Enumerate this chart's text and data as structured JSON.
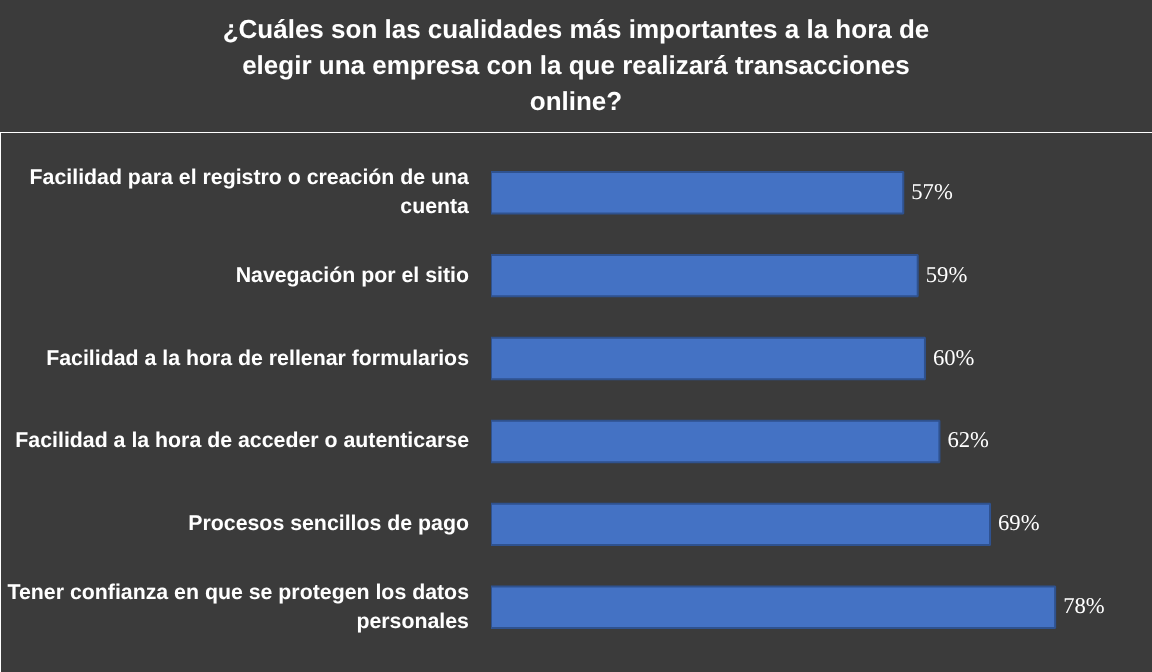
{
  "chart_data": {
    "type": "bar",
    "orientation": "horizontal",
    "title": "¿Cuáles son las cualidades más importantes  a la hora de elegir una empresa con la que realizará transacciones online?",
    "categories": [
      "Facilidad para el registro o creación de una cuenta",
      "Navegación por el sitio",
      "Facilidad a la hora de rellenar formularios",
      "Facilidad a la hora de acceder o autenticarse",
      "Procesos sencillos de pago",
      "Tener confianza en que se protegen los datos personales"
    ],
    "values": [
      57,
      59,
      60,
      62,
      69,
      78
    ],
    "value_labels": [
      "57%",
      "59%",
      "60%",
      "62%",
      "69%",
      "78%"
    ],
    "color": "#4472c4",
    "xlim": [
      0,
      86
    ],
    "tick_labels": "y",
    "grid": false
  }
}
